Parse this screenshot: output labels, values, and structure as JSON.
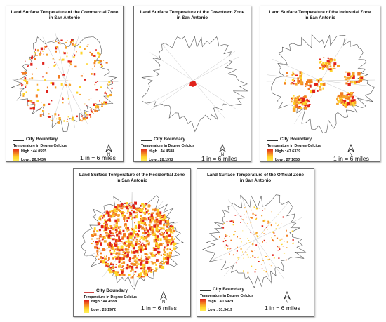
{
  "panels": [
    {
      "id": "commercial",
      "title": "Land Surface Temperature of the Commercial Zone\nin San Antonio",
      "city_boundary": "City Boundary",
      "legend_title": "Temperature in Degree Celcius",
      "high": "High : 44.0595",
      "low": "Low : 26.9434",
      "scale": "1 in = 6 miles",
      "north": "N",
      "density": "medium",
      "fill_color": "#f2a024"
    },
    {
      "id": "downtown",
      "title": "Land Surface Temperature of the Downtown Zone\nin San Antonio",
      "city_boundary": "City Boundary",
      "legend_title": "Temperature in Degree Celcius",
      "high": "High : 44.4588",
      "low": "Low : 28.1972",
      "scale": "1 in = 6 miles",
      "north": "N",
      "density": "center",
      "fill_color": "#e0221b"
    },
    {
      "id": "industrial",
      "title": "Land Surface Temperature of the Industrial Zone\nin San Antonio",
      "city_boundary": "City Boundary",
      "legend_title": "Temperature in Degree Celcius",
      "high": "High : 47.6339",
      "low": "Low : 27.1653",
      "scale": "1 in = 6 miles",
      "north": "N",
      "density": "clusters",
      "fill_color": "#e8541e"
    },
    {
      "id": "residential",
      "title": "Land Surface Temperature of the Residential Zone\nin San Antonio",
      "city_boundary": "City Boundary",
      "legend_title": "Temperature in Degree Celcius",
      "high": "High : 44.4588",
      "low": "Low : 28.1972",
      "scale": "1 in = 6 miles",
      "north": "N",
      "density": "dense",
      "fill_color": "#ee6a1f"
    },
    {
      "id": "official",
      "title": "Land Surface Temperature of the Official Zone\nin San Antonio",
      "city_boundary": "City Boundary",
      "legend_title": "Temperature in Degree Celcius",
      "high": "High : 40.6979",
      "low": "Low : 31.3419",
      "scale": "1 in = 6 miles",
      "north": "N",
      "density": "sparse",
      "fill_color": "#e9701f"
    }
  ]
}
